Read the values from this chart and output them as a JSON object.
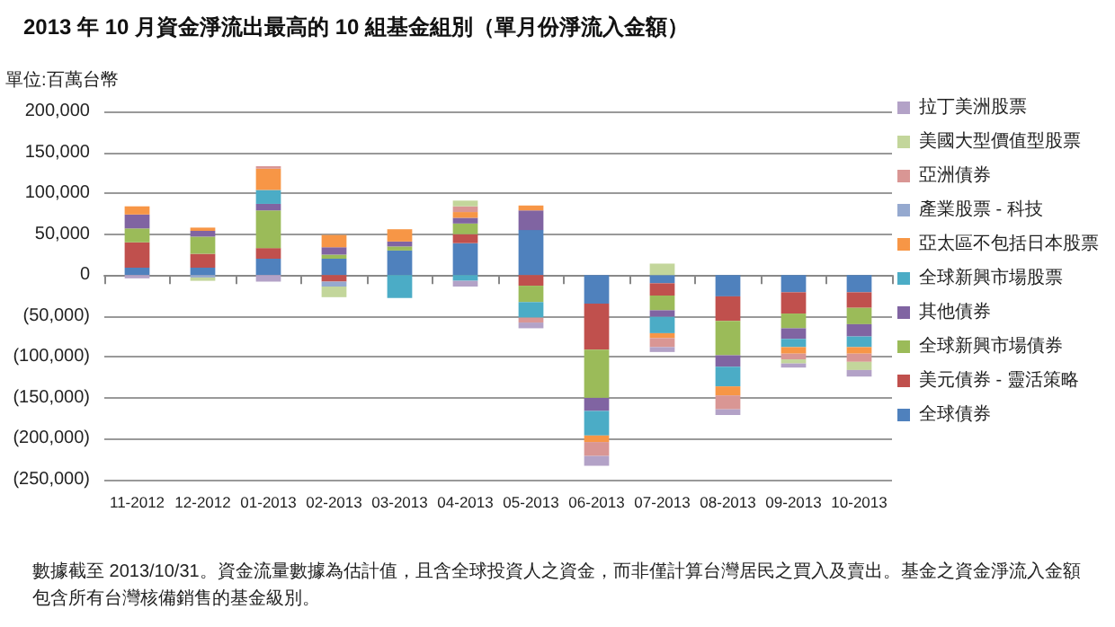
{
  "chart_data": {
    "type": "bar",
    "stacked": true,
    "title": "2013 年 10 月資金淨流出最高的 10 組基金組別（單月份淨流入金額）",
    "ylabel": "單位:百萬台幣",
    "annotations": [
      "數據截至 2013/10/31。資金流量數據為估計值，且含全球投資人之資金，而非僅計算台灣居民之買入及賣出。基金之資金淨流入金額包含所有台灣核備銷售的基金級別。"
    ],
    "categories": [
      "11-2012",
      "12-2012",
      "01-2013",
      "02-2013",
      "03-2013",
      "04-2013",
      "05-2013",
      "06-2013",
      "07-2013",
      "08-2013",
      "09-2013",
      "10-2013"
    ],
    "series": [
      {
        "name": "全球債券",
        "color": "#4f81bd",
        "values": [
          9000,
          9000,
          20000,
          20000,
          30000,
          39000,
          55000,
          -35000,
          -10000,
          -26000,
          -21000,
          -21000
        ]
      },
      {
        "name": "美元債券 - 靈活策略",
        "color": "#c0504d",
        "values": [
          31000,
          17000,
          13000,
          -8000,
          null,
          11000,
          -13000,
          -56000,
          -15000,
          -30000,
          -26000,
          -19000
        ]
      },
      {
        "name": "全球新興市場債券",
        "color": "#9bbb59",
        "values": [
          17000,
          21000,
          46000,
          5000,
          5000,
          13000,
          -20000,
          -59000,
          -18000,
          -42000,
          -18000,
          -20000
        ]
      },
      {
        "name": "其他債券",
        "color": "#8064a2",
        "values": [
          17000,
          7000,
          8000,
          9000,
          6000,
          7000,
          24000,
          -16000,
          -8000,
          -14000,
          -13000,
          -15000
        ]
      },
      {
        "name": "全球新興市場股票",
        "color": "#4bacc6",
        "values": [
          null,
          null,
          17000,
          null,
          -28000,
          -7000,
          -19000,
          -30000,
          -20000,
          -24000,
          -10000,
          -13000
        ]
      },
      {
        "name": "亞太區不包括日本股票",
        "color": "#f79646",
        "values": [
          10000,
          4000,
          26000,
          15000,
          15000,
          7000,
          6000,
          -8000,
          -6000,
          -11000,
          -8000,
          -8000
        ]
      },
      {
        "name": "產業股票 - 科技",
        "color": "#95a9cf",
        "values": [
          null,
          -3000,
          null,
          -6000,
          null,
          null,
          null,
          null,
          null,
          null,
          null,
          null
        ]
      },
      {
        "name": "亞洲債券",
        "color": "#d99694",
        "values": [
          null,
          null,
          3000,
          null,
          null,
          7000,
          -6000,
          -17000,
          -11000,
          -17000,
          -7000,
          -10000
        ]
      },
      {
        "name": "美國大型價值型股票",
        "color": "#c3d69b",
        "values": [
          null,
          -4000,
          null,
          -13000,
          null,
          7000,
          null,
          null,
          14000,
          null,
          -5000,
          -10000
        ]
      },
      {
        "name": "拉丁美洲股票",
        "color": "#b3a2c7",
        "values": [
          -4000,
          null,
          -8000,
          null,
          null,
          -7000,
          -7000,
          -12000,
          -6000,
          -7000,
          -5000,
          -8000
        ]
      }
    ],
    "ylim": [
      -250000,
      200000
    ],
    "yticks": [
      {
        "value": -250000,
        "label": "(250,000)"
      },
      {
        "value": -200000,
        "label": "(200,000)"
      },
      {
        "value": -150000,
        "label": "(150,000)"
      },
      {
        "value": -100000,
        "label": "(100,000)"
      },
      {
        "value": -50000,
        "label": "(50,000)"
      },
      {
        "value": 0,
        "label": "0"
      },
      {
        "value": 50000,
        "label": "50,000"
      },
      {
        "value": 100000,
        "label": "100,000"
      },
      {
        "value": 150000,
        "label": "150,000"
      },
      {
        "value": 200000,
        "label": "200,000"
      }
    ],
    "grid": "y",
    "legend": "right"
  }
}
